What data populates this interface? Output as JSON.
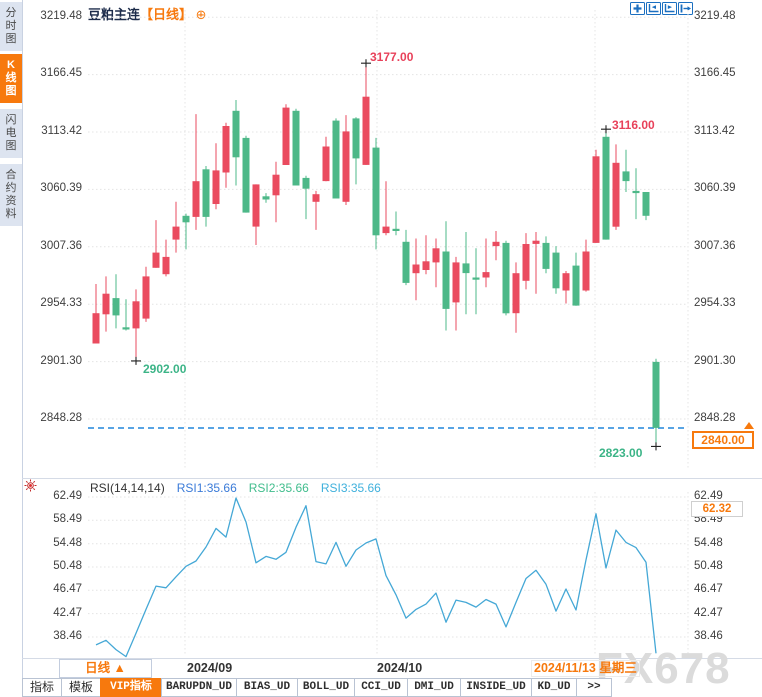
{
  "header": {
    "symbol": "豆粕主连",
    "period_tag": "【日线】",
    "plus_icon": "⊕"
  },
  "sidebar": {
    "tabs": [
      {
        "label": "分时图",
        "active": false
      },
      {
        "label": "K线图",
        "active": true
      },
      {
        "label": "闪电图",
        "active": false
      },
      {
        "label": "合约资料",
        "active": false
      }
    ]
  },
  "toolbar_icons": [
    "pan-icon",
    "axis-compress-icon",
    "axis-expand-icon",
    "go-latest-icon"
  ],
  "colors": {
    "accent_orange": "#f7790d",
    "up": "#ea4b5f",
    "down": "#4db888",
    "rsi_line": "#45a8d6",
    "icon_blue": "#1b6fc0",
    "last_price_line": "#2186db",
    "annotation_red": "#e8415a",
    "annotation_green": "#3cb487",
    "grid": "#e4e4e4"
  },
  "price_axis": {
    "labels": [
      "3219.48",
      "3166.45",
      "3113.42",
      "3060.39",
      "3007.36",
      "2954.33",
      "2901.30",
      "2848.28"
    ]
  },
  "annotations": {
    "high": "3177.00",
    "low": "2902.00",
    "swing_high": "3116.00",
    "swing_low": "2823.00",
    "last_price": "2840.00",
    "rsi_max": "62.32"
  },
  "rsi_panel": {
    "title": "RSI(14,14,14)",
    "legend": [
      {
        "label": "RSI1:35.66",
        "color": "#3b7bd8"
      },
      {
        "label": "RSI2:35.66",
        "color": "#41bd8d"
      },
      {
        "label": "RSI3:35.66",
        "color": "#3fb0dc"
      }
    ],
    "axis_labels": [
      "62.49",
      "58.49",
      "54.48",
      "50.48",
      "46.47",
      "42.47",
      "38.46"
    ]
  },
  "date_axis": {
    "period_label": "日线 ▲",
    "sep": "2024/09",
    "oct": "2024/10",
    "current": "2024/11/13 星期三"
  },
  "watermark": "FX678",
  "bottom_tabs": [
    {
      "label": "指标",
      "active": false
    },
    {
      "label": "模板",
      "active": false
    },
    {
      "label": "VIP指标",
      "active": true
    },
    {
      "label": "BARUPDN_UD",
      "active": false
    },
    {
      "label": "BIAS_UD",
      "active": false
    },
    {
      "label": "BOLL_UD",
      "active": false
    },
    {
      "label": "CCI_UD",
      "active": false
    },
    {
      "label": "DMI_UD",
      "active": false
    },
    {
      "label": "INSIDE_UD",
      "active": false
    },
    {
      "label": "KD_UD",
      "active": false
    },
    {
      "label": ">>",
      "active": false
    }
  ],
  "chart_data": [
    {
      "type": "candlestick",
      "title": "豆粕主连 日线",
      "ylim": [
        2823,
        3219.48
      ],
      "y_ticks": [
        3219.48,
        3166.45,
        3113.42,
        3060.39,
        3007.36,
        2954.33,
        2901.3,
        2848.28
      ],
      "x_ticks": [
        "2024/09",
        "2024/10",
        "2024/11/13"
      ],
      "up_color": "#ea4b5f",
      "down_color": "#4db888",
      "last_price": 2840.0,
      "marker_points": [
        {
          "i": 27,
          "p": 3177
        },
        {
          "i": 4,
          "p": 2902
        },
        {
          "i": 51,
          "p": 3116
        },
        {
          "i": 56,
          "p": 2823
        }
      ],
      "candles_ohlc": [
        [
          2918,
          2973,
          2918,
          2946
        ],
        [
          2945,
          2980,
          2929,
          2964
        ],
        [
          2960,
          2982,
          2932,
          2944
        ],
        [
          2933,
          2959,
          2930,
          2931
        ],
        [
          2932,
          2968,
          2902,
          2957
        ],
        [
          2941,
          2989,
          2938,
          2980
        ],
        [
          2988,
          3032,
          2988,
          3002
        ],
        [
          2982,
          3014,
          2980,
          2998
        ],
        [
          3014,
          3049,
          3002,
          3026
        ],
        [
          3036,
          3038,
          3005,
          3030
        ],
        [
          3035,
          3130,
          3023,
          3068
        ],
        [
          3079,
          3082,
          3026,
          3035
        ],
        [
          3047,
          3103,
          3042,
          3078
        ],
        [
          3076,
          3122,
          3062,
          3119
        ],
        [
          3133,
          3143,
          3064,
          3090
        ],
        [
          3108,
          3110,
          3039,
          3039
        ],
        [
          3026,
          3065,
          3009,
          3065
        ],
        [
          3054,
          3057,
          3048,
          3051
        ],
        [
          3055,
          3086,
          3030,
          3074
        ],
        [
          3083,
          3139,
          3083,
          3136
        ],
        [
          3133,
          3135,
          3064,
          3064
        ],
        [
          3071,
          3073,
          3033,
          3061
        ],
        [
          3049,
          3059,
          3023,
          3056
        ],
        [
          3068,
          3109,
          3068,
          3100
        ],
        [
          3124,
          3126,
          3052,
          3052
        ],
        [
          3049,
          3129,
          3046,
          3114
        ],
        [
          3126,
          3127,
          3065,
          3089
        ],
        [
          3083,
          3177,
          3083,
          3146
        ],
        [
          3099,
          3108,
          3005,
          3018
        ],
        [
          3020,
          3068,
          3018,
          3026
        ],
        [
          3024,
          3040,
          3018,
          3022
        ],
        [
          3012,
          3023,
          2972,
          2974
        ],
        [
          2983,
          3015,
          2958,
          2991
        ],
        [
          2986,
          3018,
          2982,
          2994
        ],
        [
          2993,
          3015,
          2970,
          3006
        ],
        [
          3003,
          3031,
          2930,
          2950
        ],
        [
          2956,
          2998,
          2930,
          2993
        ],
        [
          2992,
          3021,
          2945,
          2983
        ],
        [
          2979,
          3006,
          2945,
          2977
        ],
        [
          2979,
          3015,
          2970,
          2984
        ],
        [
          3008,
          3022,
          2995,
          3012
        ],
        [
          3011,
          3013,
          2944,
          2946
        ],
        [
          2946,
          2993,
          2928,
          2983
        ],
        [
          2976,
          3020,
          2968,
          3010
        ],
        [
          3010,
          3021,
          2964,
          3013
        ],
        [
          3011,
          3017,
          2983,
          2987
        ],
        [
          3002,
          3008,
          2964,
          2969
        ],
        [
          2967,
          2985,
          2955,
          2983
        ],
        [
          2990,
          3002,
          2953,
          2953
        ],
        [
          2967,
          3014,
          2966,
          3003
        ],
        [
          3011,
          3097,
          3011,
          3091
        ],
        [
          3109,
          3116,
          3014,
          3014
        ],
        [
          3026,
          3102,
          3023,
          3085
        ],
        [
          3077,
          3097,
          3058,
          3068
        ],
        [
          3059,
          3080,
          3033,
          3057
        ],
        [
          3058,
          3058,
          3032,
          3036
        ],
        [
          2901,
          2904,
          2823,
          2840
        ]
      ]
    },
    {
      "type": "line",
      "title": "RSI(14,14,14)",
      "legend": [
        "RSI1:35.66",
        "RSI2:35.66",
        "RSI3:35.66"
      ],
      "y_ticks": [
        62.49,
        58.49,
        54.48,
        50.48,
        46.47,
        42.47,
        38.46
      ],
      "ylim": [
        34,
        64
      ],
      "line_color": "#45a8d6",
      "max_label": 62.32,
      "values": [
        37.1,
        37.9,
        36.3,
        35.1,
        39.1,
        43.2,
        47.2,
        46.9,
        48.8,
        50.6,
        51.5,
        53.9,
        57.1,
        55.6,
        62.32,
        58.2,
        51.2,
        52.3,
        51.8,
        53.0,
        57.3,
        61.0,
        51.4,
        51.0,
        54.7,
        50.6,
        53.4,
        54.6,
        55.3,
        49.0,
        45.7,
        41.7,
        43.2,
        44.1,
        46.0,
        41.0,
        44.8,
        44.4,
        43.6,
        44.9,
        44.1,
        40.2,
        44.4,
        48.5,
        49.9,
        47.5,
        42.9,
        46.7,
        43.1,
        51.7,
        59.6,
        50.3,
        56.8,
        54.7,
        53.8,
        51.3,
        35.66
      ]
    }
  ]
}
